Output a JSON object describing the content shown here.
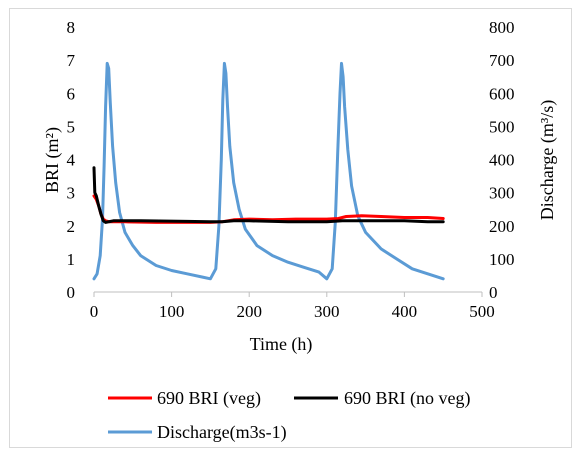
{
  "chart_data": {
    "type": "line",
    "title": "",
    "xlabel": "Time (h)",
    "ylabel_left": "BRI (m²)",
    "ylabel_right": "Discharge (m³/s)",
    "xlim": [
      0,
      500
    ],
    "ylim_left": [
      0,
      8
    ],
    "ylim_right": [
      0,
      800
    ],
    "x_ticks": [
      "0",
      "100",
      "200",
      "300",
      "400",
      "500"
    ],
    "y_ticks_left": [
      "0",
      "1",
      "2",
      "3",
      "4",
      "5",
      "6",
      "7",
      "8"
    ],
    "y_ticks_right": [
      "0",
      "100",
      "200",
      "300",
      "400",
      "500",
      "600",
      "700",
      "800"
    ],
    "grid": false,
    "legend_position": "bottom",
    "series": [
      {
        "name": "690 BRI (veg)",
        "axis": "left",
        "color": "#ff0000",
        "points": [
          [
            0,
            2.9
          ],
          [
            3,
            2.8
          ],
          [
            6,
            2.6
          ],
          [
            9,
            2.35
          ],
          [
            12,
            2.2
          ],
          [
            15,
            2.15
          ],
          [
            20,
            2.12
          ],
          [
            40,
            2.12
          ],
          [
            80,
            2.1
          ],
          [
            120,
            2.1
          ],
          [
            150,
            2.1
          ],
          [
            165,
            2.12
          ],
          [
            180,
            2.18
          ],
          [
            200,
            2.2
          ],
          [
            230,
            2.18
          ],
          [
            260,
            2.2
          ],
          [
            300,
            2.2
          ],
          [
            315,
            2.22
          ],
          [
            325,
            2.28
          ],
          [
            345,
            2.3
          ],
          [
            370,
            2.28
          ],
          [
            400,
            2.25
          ],
          [
            430,
            2.25
          ],
          [
            450,
            2.22
          ]
        ]
      },
      {
        "name": "690 BRI (no veg)",
        "axis": "left",
        "color": "#000000",
        "points": [
          [
            0,
            3.75
          ],
          [
            1,
            3.0
          ],
          [
            3,
            2.9
          ],
          [
            6,
            2.6
          ],
          [
            9,
            2.35
          ],
          [
            12,
            2.15
          ],
          [
            15,
            2.1
          ],
          [
            25,
            2.15
          ],
          [
            60,
            2.15
          ],
          [
            120,
            2.13
          ],
          [
            150,
            2.12
          ],
          [
            165,
            2.12
          ],
          [
            180,
            2.15
          ],
          [
            200,
            2.15
          ],
          [
            250,
            2.12
          ],
          [
            300,
            2.12
          ],
          [
            320,
            2.15
          ],
          [
            350,
            2.15
          ],
          [
            400,
            2.15
          ],
          [
            430,
            2.12
          ],
          [
            450,
            2.12
          ]
        ]
      },
      {
        "name": "Discharge(m3s-1)",
        "axis": "right",
        "color": "#5b9bd5",
        "points": [
          [
            0,
            40
          ],
          [
            4,
            55
          ],
          [
            8,
            110
          ],
          [
            11,
            220
          ],
          [
            13,
            380
          ],
          [
            15,
            560
          ],
          [
            17,
            690
          ],
          [
            19,
            675
          ],
          [
            21,
            570
          ],
          [
            24,
            440
          ],
          [
            28,
            330
          ],
          [
            33,
            240
          ],
          [
            40,
            180
          ],
          [
            50,
            140
          ],
          [
            60,
            110
          ],
          [
            80,
            80
          ],
          [
            100,
            65
          ],
          [
            120,
            55
          ],
          [
            140,
            45
          ],
          [
            150,
            40
          ],
          [
            157,
            70
          ],
          [
            161,
            200
          ],
          [
            164,
            400
          ],
          [
            166,
            580
          ],
          [
            168,
            690
          ],
          [
            170,
            660
          ],
          [
            172,
            560
          ],
          [
            175,
            440
          ],
          [
            180,
            330
          ],
          [
            187,
            250
          ],
          [
            195,
            190
          ],
          [
            210,
            140
          ],
          [
            230,
            110
          ],
          [
            250,
            90
          ],
          [
            270,
            75
          ],
          [
            290,
            60
          ],
          [
            300,
            40
          ],
          [
            307,
            70
          ],
          [
            311,
            210
          ],
          [
            314,
            420
          ],
          [
            317,
            600
          ],
          [
            319,
            690
          ],
          [
            321,
            650
          ],
          [
            323,
            560
          ],
          [
            327,
            430
          ],
          [
            332,
            320
          ],
          [
            340,
            230
          ],
          [
            350,
            180
          ],
          [
            370,
            130
          ],
          [
            390,
            100
          ],
          [
            410,
            70
          ],
          [
            430,
            55
          ],
          [
            450,
            40
          ]
        ]
      }
    ]
  }
}
